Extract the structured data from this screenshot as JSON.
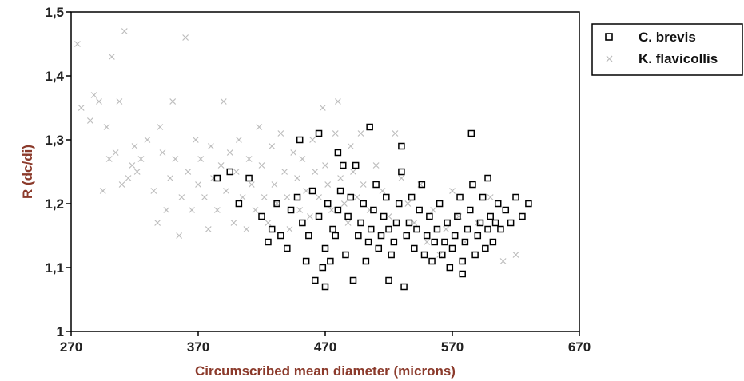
{
  "chart_data": {
    "type": "scatter",
    "xlabel": "Circumscribed mean diameter (microns)",
    "ylabel": "R (dc/di)",
    "xlim": [
      270,
      670
    ],
    "ylim": [
      1.0,
      1.5
    ],
    "x_ticks": [
      270,
      370,
      470,
      570,
      670
    ],
    "x_tick_labels": [
      "270",
      "370",
      "470",
      "570",
      "670"
    ],
    "y_ticks": [
      1.0,
      1.1,
      1.2,
      1.3,
      1.4,
      1.5
    ],
    "y_tick_labels": [
      "1",
      "1,1",
      "1,2",
      "1,3",
      "1,4",
      "1,5"
    ],
    "grid": false,
    "legend_position": "outside-top-right",
    "series": [
      {
        "name": "C. brevis",
        "marker": "square",
        "color": "#000000",
        "points": [
          [
            385,
            1.24
          ],
          [
            395,
            1.25
          ],
          [
            402,
            1.2
          ],
          [
            410,
            1.24
          ],
          [
            420,
            1.18
          ],
          [
            425,
            1.14
          ],
          [
            428,
            1.16
          ],
          [
            432,
            1.2
          ],
          [
            435,
            1.15
          ],
          [
            440,
            1.13
          ],
          [
            443,
            1.19
          ],
          [
            448,
            1.21
          ],
          [
            452,
            1.17
          ],
          [
            455,
            1.11
          ],
          [
            457,
            1.15
          ],
          [
            460,
            1.22
          ],
          [
            462,
            1.08
          ],
          [
            465,
            1.18
          ],
          [
            468,
            1.1
          ],
          [
            470,
            1.13
          ],
          [
            472,
            1.2
          ],
          [
            474,
            1.11
          ],
          [
            476,
            1.16
          ],
          [
            478,
            1.15
          ],
          [
            480,
            1.19
          ],
          [
            482,
            1.22
          ],
          [
            484,
            1.26
          ],
          [
            486,
            1.12
          ],
          [
            488,
            1.18
          ],
          [
            490,
            1.21
          ],
          [
            492,
            1.08
          ],
          [
            494,
            1.26
          ],
          [
            496,
            1.15
          ],
          [
            498,
            1.17
          ],
          [
            500,
            1.2
          ],
          [
            502,
            1.11
          ],
          [
            504,
            1.14
          ],
          [
            506,
            1.16
          ],
          [
            508,
            1.19
          ],
          [
            510,
            1.23
          ],
          [
            512,
            1.13
          ],
          [
            514,
            1.15
          ],
          [
            516,
            1.18
          ],
          [
            518,
            1.21
          ],
          [
            520,
            1.16
          ],
          [
            522,
            1.12
          ],
          [
            524,
            1.14
          ],
          [
            526,
            1.17
          ],
          [
            528,
            1.2
          ],
          [
            530,
            1.25
          ],
          [
            532,
            1.07
          ],
          [
            534,
            1.15
          ],
          [
            536,
            1.17
          ],
          [
            538,
            1.21
          ],
          [
            540,
            1.13
          ],
          [
            542,
            1.16
          ],
          [
            544,
            1.19
          ],
          [
            546,
            1.23
          ],
          [
            548,
            1.12
          ],
          [
            550,
            1.15
          ],
          [
            552,
            1.18
          ],
          [
            554,
            1.11
          ],
          [
            556,
            1.14
          ],
          [
            558,
            1.16
          ],
          [
            560,
            1.2
          ],
          [
            562,
            1.12
          ],
          [
            564,
            1.14
          ],
          [
            566,
            1.17
          ],
          [
            568,
            1.1
          ],
          [
            570,
            1.13
          ],
          [
            572,
            1.15
          ],
          [
            574,
            1.18
          ],
          [
            576,
            1.21
          ],
          [
            578,
            1.11
          ],
          [
            580,
            1.14
          ],
          [
            582,
            1.16
          ],
          [
            584,
            1.19
          ],
          [
            586,
            1.23
          ],
          [
            588,
            1.12
          ],
          [
            590,
            1.15
          ],
          [
            592,
            1.17
          ],
          [
            594,
            1.21
          ],
          [
            596,
            1.13
          ],
          [
            598,
            1.16
          ],
          [
            600,
            1.18
          ],
          [
            602,
            1.14
          ],
          [
            604,
            1.17
          ],
          [
            606,
            1.2
          ],
          [
            608,
            1.16
          ],
          [
            612,
            1.19
          ],
          [
            616,
            1.17
          ],
          [
            620,
            1.21
          ],
          [
            625,
            1.18
          ],
          [
            630,
            1.2
          ],
          [
            450,
            1.3
          ],
          [
            465,
            1.31
          ],
          [
            480,
            1.28
          ],
          [
            505,
            1.32
          ],
          [
            530,
            1.29
          ],
          [
            585,
            1.31
          ],
          [
            598,
            1.24
          ],
          [
            578,
            1.09
          ],
          [
            520,
            1.08
          ],
          [
            470,
            1.07
          ]
        ]
      },
      {
        "name": "K. flavicollis",
        "marker": "x",
        "color": "#bdbdbd",
        "points": [
          [
            275,
            1.45
          ],
          [
            278,
            1.35
          ],
          [
            285,
            1.33
          ],
          [
            288,
            1.37
          ],
          [
            292,
            1.36
          ],
          [
            295,
            1.22
          ],
          [
            298,
            1.32
          ],
          [
            300,
            1.27
          ],
          [
            302,
            1.43
          ],
          [
            305,
            1.28
          ],
          [
            308,
            1.36
          ],
          [
            310,
            1.23
          ],
          [
            312,
            1.47
          ],
          [
            315,
            1.24
          ],
          [
            318,
            1.26
          ],
          [
            320,
            1.29
          ],
          [
            322,
            1.25
          ],
          [
            325,
            1.27
          ],
          [
            330,
            1.3
          ],
          [
            335,
            1.22
          ],
          [
            338,
            1.17
          ],
          [
            340,
            1.32
          ],
          [
            342,
            1.28
          ],
          [
            345,
            1.19
          ],
          [
            348,
            1.24
          ],
          [
            350,
            1.36
          ],
          [
            352,
            1.27
          ],
          [
            355,
            1.15
          ],
          [
            357,
            1.21
          ],
          [
            360,
            1.46
          ],
          [
            362,
            1.25
          ],
          [
            365,
            1.19
          ],
          [
            368,
            1.3
          ],
          [
            370,
            1.23
          ],
          [
            372,
            1.27
          ],
          [
            375,
            1.21
          ],
          [
            378,
            1.16
          ],
          [
            380,
            1.29
          ],
          [
            382,
            1.24
          ],
          [
            385,
            1.19
          ],
          [
            388,
            1.26
          ],
          [
            390,
            1.36
          ],
          [
            392,
            1.22
          ],
          [
            395,
            1.28
          ],
          [
            398,
            1.17
          ],
          [
            400,
            1.25
          ],
          [
            402,
            1.3
          ],
          [
            405,
            1.21
          ],
          [
            408,
            1.16
          ],
          [
            410,
            1.27
          ],
          [
            412,
            1.23
          ],
          [
            415,
            1.19
          ],
          [
            418,
            1.32
          ],
          [
            420,
            1.26
          ],
          [
            422,
            1.21
          ],
          [
            425,
            1.17
          ],
          [
            428,
            1.29
          ],
          [
            430,
            1.23
          ],
          [
            432,
            1.2
          ],
          [
            435,
            1.31
          ],
          [
            438,
            1.25
          ],
          [
            440,
            1.21
          ],
          [
            442,
            1.16
          ],
          [
            445,
            1.28
          ],
          [
            448,
            1.24
          ],
          [
            450,
            1.19
          ],
          [
            452,
            1.27
          ],
          [
            455,
            1.22
          ],
          [
            458,
            1.18
          ],
          [
            460,
            1.3
          ],
          [
            462,
            1.25
          ],
          [
            465,
            1.21
          ],
          [
            468,
            1.35
          ],
          [
            470,
            1.26
          ],
          [
            472,
            1.23
          ],
          [
            475,
            1.19
          ],
          [
            478,
            1.31
          ],
          [
            480,
            1.36
          ],
          [
            482,
            1.24
          ],
          [
            485,
            1.2
          ],
          [
            488,
            1.17
          ],
          [
            490,
            1.29
          ],
          [
            492,
            1.25
          ],
          [
            495,
            1.21
          ],
          [
            498,
            1.31
          ],
          [
            500,
            1.23
          ],
          [
            505,
            1.19
          ],
          [
            510,
            1.26
          ],
          [
            515,
            1.22
          ],
          [
            520,
            1.18
          ],
          [
            525,
            1.31
          ],
          [
            530,
            1.24
          ],
          [
            535,
            1.2
          ],
          [
            540,
            1.17
          ],
          [
            545,
            1.23
          ],
          [
            550,
            1.14
          ],
          [
            555,
            1.19
          ],
          [
            560,
            1.12
          ],
          [
            565,
            1.16
          ],
          [
            570,
            1.22
          ],
          [
            575,
            1.18
          ],
          [
            580,
            1.14
          ],
          [
            590,
            1.17
          ],
          [
            600,
            1.21
          ],
          [
            610,
            1.11
          ],
          [
            620,
            1.12
          ]
        ]
      }
    ]
  }
}
